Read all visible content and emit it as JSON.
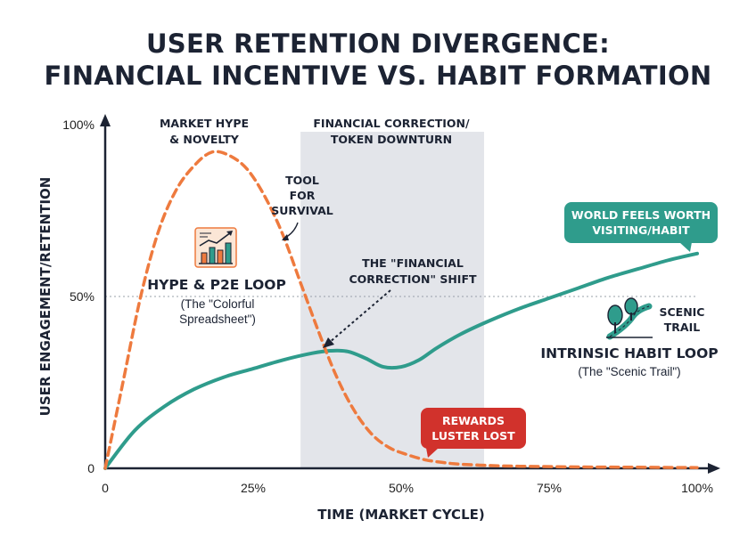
{
  "title": {
    "line1": "USER RETENTION DIVERGENCE:",
    "line2": "FINANCIAL INCENTIVE VS. HABIT FORMATION"
  },
  "colors": {
    "hype": "#ee7a3e",
    "habit": "#2f9c8c",
    "band": "#e3e5ea",
    "rewards_badge": "#d1322c",
    "habit_badge": "#2f9c8c",
    "axis": "#1c2333"
  },
  "annotations": {
    "market_hype": [
      "MARKET HYPE",
      "& NOVELTY"
    ],
    "financial_correction_band": [
      "FINANCIAL CORRECTION/",
      "TOKEN DOWNTURN"
    ],
    "tool_for_survival": [
      "TOOL",
      "FOR",
      "SURVIVAL"
    ],
    "hype_loop_title": "HYPE & P2E LOOP",
    "hype_loop_sub": [
      "(The \"Colorful",
      "Spreadsheet\")"
    ],
    "financial_shift": [
      "THE \"FINANCIAL",
      "CORRECTION\" SHIFT"
    ],
    "world_badge": [
      "WORLD FEELS WORTH",
      "VISITING/HABIT"
    ],
    "scenic_label": [
      "SCENIC",
      "TRAIL"
    ],
    "habit_loop_title": "INTRINSIC HABIT LOOP",
    "habit_loop_sub": "(The \"Scenic Trail\")",
    "rewards_badge": [
      "REWARDS",
      "LUSTER LOST"
    ]
  },
  "icons": {
    "hype": "bar-chart-growth-icon",
    "habit": "scenic-trail-trees-icon"
  },
  "chart_data": {
    "type": "line",
    "xlabel": "TIME (MARKET CYCLE)",
    "ylabel": "USER ENGAGEMENT/RETENTION",
    "xlim": [
      0,
      100
    ],
    "ylim": [
      0,
      100
    ],
    "x_ticks": [
      "0",
      "25%",
      "50%",
      "75%",
      "100%"
    ],
    "y_ticks": [
      "0",
      "50%",
      "100%"
    ],
    "reference_line_y": 50,
    "shaded_region_x": [
      33,
      64
    ],
    "series": [
      {
        "name": "HYPE & P2E LOOP",
        "style": "dashed",
        "x": [
          0,
          3,
          6,
          9,
          12,
          15,
          18,
          21,
          24,
          27,
          30,
          33,
          36,
          39,
          42,
          45,
          48,
          51,
          54,
          57,
          60,
          65,
          70,
          80,
          90,
          100
        ],
        "y": [
          0,
          25,
          50,
          69,
          81,
          88,
          92,
          91,
          87,
          79,
          68,
          54,
          40,
          27,
          17,
          10,
          6,
          4,
          2.5,
          1.7,
          1.2,
          0.8,
          0.6,
          0.4,
          0.3,
          0.2
        ]
      },
      {
        "name": "INTRINSIC HABIT LOOP",
        "style": "solid",
        "x": [
          0,
          5,
          10,
          15,
          20,
          25,
          30,
          35,
          38,
          41,
          44,
          47,
          50,
          53,
          56,
          60,
          65,
          70,
          75,
          80,
          85,
          90,
          95,
          100
        ],
        "y": [
          0,
          11,
          18,
          23,
          26.5,
          29,
          31.5,
          33.5,
          34.2,
          34,
          32,
          29.5,
          29.5,
          31.5,
          35,
          39,
          43,
          46.5,
          49.5,
          52.5,
          55.5,
          58,
          60.5,
          62.5
        ]
      }
    ]
  }
}
